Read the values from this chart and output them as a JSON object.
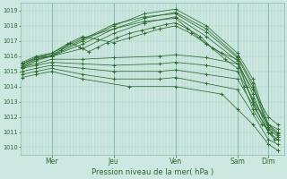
{
  "xlabel": "Pression niveau de la mer( hPa )",
  "bg_color": "#cce8e0",
  "grid_color_v": "#aaccc4",
  "grid_color_h": "#aaccc4",
  "line_color": "#2d6b2d",
  "ylim": [
    1009.5,
    1019.5
  ],
  "yticks": [
    1010,
    1011,
    1012,
    1013,
    1014,
    1015,
    1016,
    1017,
    1018,
    1019
  ],
  "xlim": [
    0.0,
    8.5
  ],
  "day_labels": [
    "Mer",
    "Jeu",
    "Ven",
    "Sam",
    "Dim"
  ],
  "day_x": [
    1.0,
    3.0,
    5.0,
    7.0,
    8.0
  ],
  "series": [
    {
      "x": [
        0.05,
        0.5,
        1.0,
        2.0,
        3.0,
        4.0,
        5.0,
        6.0,
        7.0,
        7.5,
        8.0,
        8.3
      ],
      "y": [
        1015.3,
        1015.8,
        1016.0,
        1017.0,
        1018.0,
        1018.8,
        1019.1,
        1018.0,
        1016.2,
        1014.5,
        1011.5,
        1010.8
      ]
    },
    {
      "x": [
        0.05,
        0.5,
        1.0,
        2.0,
        3.0,
        4.0,
        5.0,
        6.0,
        7.0,
        7.5,
        8.0,
        8.3
      ],
      "y": [
        1015.2,
        1015.7,
        1016.0,
        1016.8,
        1017.8,
        1018.5,
        1018.9,
        1017.8,
        1016.0,
        1014.2,
        1011.3,
        1010.9
      ]
    },
    {
      "x": [
        0.05,
        0.5,
        1.0,
        2.0,
        3.0,
        4.0,
        5.0,
        6.0,
        7.0,
        7.5,
        8.0,
        8.3
      ],
      "y": [
        1015.5,
        1015.9,
        1016.1,
        1017.1,
        1018.1,
        1018.6,
        1018.8,
        1017.6,
        1015.9,
        1014.0,
        1011.2,
        1010.7
      ]
    },
    {
      "x": [
        0.05,
        0.5,
        1.0,
        2.0,
        3.0,
        4.0,
        5.0,
        6.0,
        7.0,
        7.5,
        8.0,
        8.3
      ],
      "y": [
        1015.4,
        1015.8,
        1016.0,
        1016.5,
        1017.5,
        1018.2,
        1018.6,
        1017.3,
        1015.7,
        1013.5,
        1011.0,
        1010.5
      ]
    },
    {
      "x": [
        0.05,
        0.5,
        1.0,
        2.0,
        3.0,
        4.0,
        5.0,
        6.0,
        7.0,
        7.5,
        8.0,
        8.3
      ],
      "y": [
        1015.6,
        1016.0,
        1016.2,
        1017.2,
        1017.8,
        1018.3,
        1018.5,
        1016.8,
        1015.5,
        1013.0,
        1011.5,
        1011.2
      ]
    },
    {
      "x": [
        0.05,
        0.5,
        1.0,
        1.5,
        2.0,
        2.5,
        3.0,
        3.5,
        4.0,
        4.5,
        5.0,
        5.5,
        6.0,
        6.5,
        7.0,
        7.3,
        7.6,
        8.0,
        8.2
      ],
      "y": [
        1015.5,
        1015.9,
        1016.2,
        1016.8,
        1017.3,
        1017.1,
        1016.9,
        1017.2,
        1017.5,
        1017.8,
        1018.0,
        1017.5,
        1016.8,
        1016.2,
        1015.8,
        1014.0,
        1012.5,
        1011.0,
        1010.5
      ]
    },
    {
      "x": [
        0.05,
        0.5,
        1.0,
        1.3,
        1.6,
        1.9,
        2.2,
        2.5,
        2.8,
        3.1,
        3.5,
        3.9,
        4.3,
        4.7,
        5.0,
        5.4,
        5.8,
        6.2,
        6.6,
        7.0,
        7.2,
        7.5,
        7.8,
        8.1
      ],
      "y": [
        1015.5,
        1015.9,
        1016.0,
        1016.4,
        1016.9,
        1016.6,
        1016.3,
        1016.6,
        1016.9,
        1017.2,
        1017.5,
        1017.7,
        1017.9,
        1018.1,
        1018.2,
        1017.8,
        1017.3,
        1016.5,
        1015.8,
        1015.2,
        1014.0,
        1012.5,
        1011.5,
        1011.0
      ]
    },
    {
      "x": [
        0.05,
        0.5,
        1.0,
        2.0,
        3.0,
        4.5,
        5.0,
        6.0,
        7.0,
        7.5,
        8.0,
        8.3
      ],
      "y": [
        1015.3,
        1015.5,
        1015.8,
        1015.8,
        1015.9,
        1016.0,
        1016.1,
        1015.9,
        1015.5,
        1013.8,
        1012.0,
        1011.5
      ]
    },
    {
      "x": [
        0.05,
        0.5,
        1.0,
        2.0,
        3.0,
        4.5,
        5.0,
        6.0,
        7.0,
        7.5,
        8.0,
        8.3
      ],
      "y": [
        1015.2,
        1015.4,
        1015.6,
        1015.5,
        1015.4,
        1015.5,
        1015.6,
        1015.4,
        1015.0,
        1013.2,
        1011.5,
        1011.0
      ]
    },
    {
      "x": [
        0.05,
        0.5,
        1.0,
        2.0,
        3.0,
        4.5,
        5.0,
        6.0,
        7.0,
        7.5,
        8.0,
        8.3
      ],
      "y": [
        1015.0,
        1015.2,
        1015.4,
        1015.2,
        1015.0,
        1015.0,
        1015.1,
        1014.8,
        1014.5,
        1012.8,
        1011.0,
        1010.5
      ]
    },
    {
      "x": [
        0.05,
        0.5,
        1.0,
        2.0,
        3.0,
        4.5,
        5.0,
        6.0,
        7.0,
        7.5,
        8.0,
        8.3
      ],
      "y": [
        1014.8,
        1015.0,
        1015.2,
        1014.8,
        1014.5,
        1014.5,
        1014.6,
        1014.2,
        1013.8,
        1012.2,
        1010.5,
        1010.2
      ]
    },
    {
      "x": [
        0.05,
        0.5,
        1.0,
        2.0,
        3.5,
        5.0,
        6.5,
        7.0,
        7.5,
        8.0,
        8.3
      ],
      "y": [
        1014.6,
        1014.8,
        1015.0,
        1014.5,
        1014.0,
        1014.0,
        1013.5,
        1012.5,
        1011.5,
        1010.2,
        1009.8
      ]
    }
  ]
}
